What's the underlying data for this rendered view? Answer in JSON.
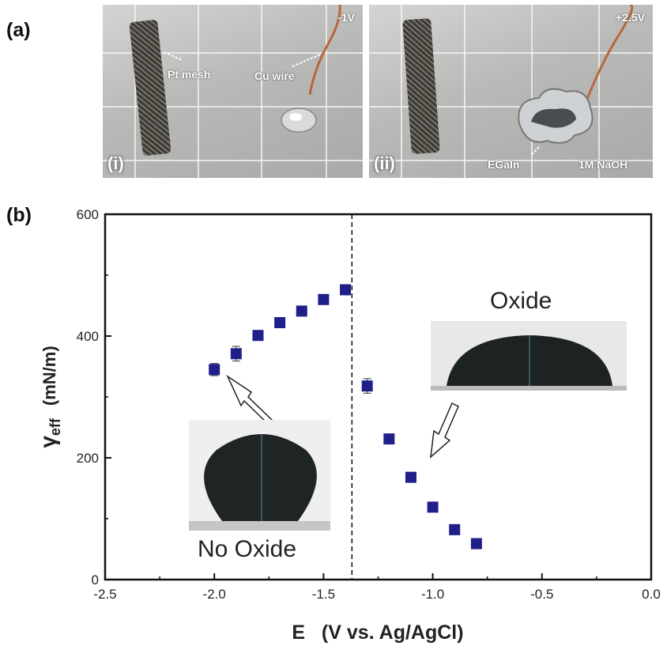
{
  "panel_a": {
    "label": "(a)",
    "photo_i": {
      "label": "(i)",
      "voltage": "-1V",
      "pt_label": "Pt mesh",
      "cu_label": "Cu wire"
    },
    "photo_ii": {
      "label": "(ii)",
      "voltage": "+2.5V",
      "egain_label": "EGaIn",
      "naoh_label": "1M NaOH"
    }
  },
  "panel_b": {
    "label": "(b)",
    "inset_oxide_label": "Oxide",
    "inset_nooxide_label": "No Oxide"
  },
  "chart_data": {
    "type": "scatter",
    "xlabel": "E   (V vs. Ag/AgCl)",
    "ylabel_symbol": "γ",
    "ylabel_sub": "eff",
    "ylabel_unit": "(mN/m)",
    "xlim": [
      -2.5,
      0.0
    ],
    "ylim": [
      0,
      600
    ],
    "xticks": [
      "-2.5",
      "-2.0",
      "-1.5",
      "-1.0",
      "-0.5",
      "0.0"
    ],
    "yticks": [
      "0",
      "200",
      "400",
      "600"
    ],
    "grid": false,
    "vline_x": -1.37,
    "marker_color": "#1f1f8a",
    "series": [
      {
        "x": [
          -2.0,
          -1.9,
          -1.8,
          -1.7,
          -1.6,
          -1.5,
          -1.4,
          -1.3,
          -1.2,
          -1.1,
          -1.0,
          -0.9,
          -0.8
        ],
        "y": [
          345,
          371,
          401,
          422,
          441,
          460,
          476,
          318,
          231,
          168,
          119,
          82,
          59
        ],
        "err": [
          10,
          12,
          5,
          7,
          5,
          5,
          6,
          12,
          0,
          0,
          0,
          0,
          0
        ]
      }
    ]
  }
}
